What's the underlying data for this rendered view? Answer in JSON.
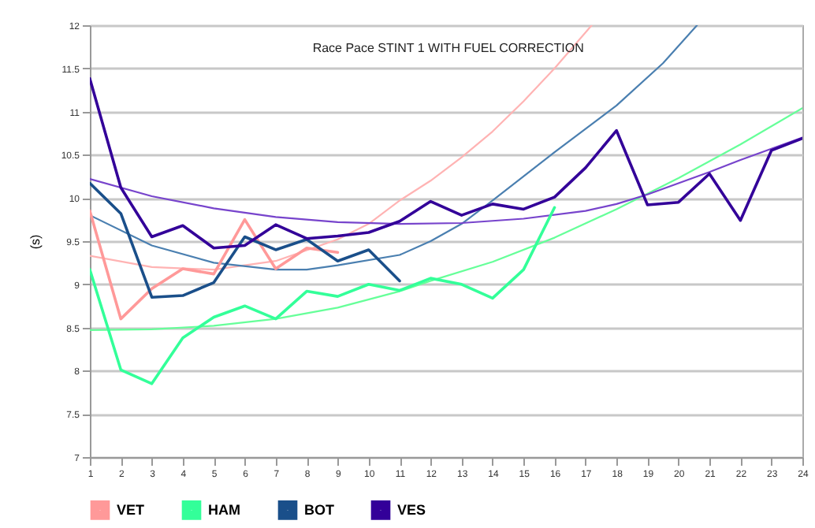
{
  "chart_data": {
    "type": "line",
    "title": "Race Pace STINT 1 WITH FUEL CORRECTION",
    "ylabel": "(s)",
    "xlim": [
      1,
      24
    ],
    "xticks": [
      1,
      2,
      3,
      4,
      5,
      6,
      7,
      8,
      9,
      10,
      11,
      12,
      13,
      14,
      15,
      16,
      17,
      18,
      19,
      20,
      21,
      22,
      23,
      24
    ],
    "ylim": [
      7,
      12
    ],
    "yticks": [
      7,
      7.5,
      8,
      8.5,
      9,
      9.5,
      10,
      10.5,
      11,
      11.5,
      12
    ],
    "grid": "y",
    "legend": "bottom",
    "marker": "none",
    "series": [
      {
        "color": "#ffb3b3",
        "x": [
          1,
          3,
          5,
          7,
          9,
          10,
          11,
          12,
          13,
          14,
          15,
          16,
          17.2
        ],
        "values": [
          9.33,
          9.2,
          9.17,
          9.27,
          9.52,
          9.7,
          9.97,
          10.2,
          10.47,
          10.77,
          11.12,
          11.5,
          12
        ]
      },
      {
        "color": "#4a7fb0",
        "x": [
          1,
          3,
          5,
          7,
          8,
          9,
          11,
          12,
          13,
          14,
          16,
          18,
          19.5,
          20.6
        ],
        "values": [
          9.8,
          9.45,
          9.25,
          9.17,
          9.17,
          9.22,
          9.34,
          9.5,
          9.7,
          9.97,
          10.53,
          11.07,
          11.56,
          12
        ]
      },
      {
        "color": "#66ff99",
        "x": [
          1,
          3,
          5,
          7,
          9,
          11,
          12,
          14,
          16,
          18,
          20,
          22,
          24
        ],
        "values": [
          8.47,
          8.48,
          8.52,
          8.6,
          8.73,
          8.92,
          9.04,
          9.26,
          9.54,
          9.87,
          10.23,
          10.62,
          11.04
        ]
      },
      {
        "color": "#7744cc",
        "x": [
          1,
          3,
          5,
          7,
          9,
          11,
          13,
          15,
          17,
          18,
          19,
          20,
          21,
          22,
          23,
          24
        ],
        "values": [
          10.22,
          10.02,
          9.88,
          9.78,
          9.72,
          9.7,
          9.71,
          9.76,
          9.85,
          9.93,
          10.04,
          10.17,
          10.3,
          10.44,
          10.57,
          10.7
        ]
      },
      {
        "name": "VET",
        "color": "#ff9999",
        "x": [
          1,
          2,
          3,
          4,
          5,
          6,
          7,
          8,
          9
        ],
        "values": [
          9.85,
          8.6,
          8.95,
          9.18,
          9.12,
          9.75,
          9.18,
          9.42,
          9.37
        ]
      },
      {
        "name": "HAM",
        "color": "#33ff99",
        "x": [
          1,
          2,
          3,
          4,
          5,
          6,
          7,
          8,
          9,
          10,
          11,
          12,
          13,
          14,
          15,
          16
        ],
        "values": [
          9.17,
          8.01,
          7.85,
          8.38,
          8.62,
          8.75,
          8.6,
          8.92,
          8.86,
          9.0,
          8.93,
          9.07,
          9.0,
          8.84,
          9.17,
          9.89
        ]
      },
      {
        "name": "BOT",
        "color": "#1a4f8a",
        "x": [
          1,
          2,
          3,
          4,
          5,
          6,
          7,
          8,
          9,
          10,
          11
        ],
        "values": [
          10.17,
          9.82,
          8.85,
          8.87,
          9.02,
          9.55,
          9.4,
          9.52,
          9.27,
          9.4,
          9.04
        ]
      },
      {
        "name": "VES",
        "color": "#330099",
        "x": [
          1,
          2,
          3,
          4,
          5,
          6,
          7,
          8,
          9,
          10,
          11,
          12,
          13,
          14,
          15,
          16,
          17,
          18,
          19,
          20,
          21,
          22,
          23,
          24
        ],
        "values": [
          11.38,
          10.12,
          9.55,
          9.68,
          9.42,
          9.45,
          9.69,
          9.53,
          9.56,
          9.6,
          9.73,
          9.96,
          9.8,
          9.93,
          9.87,
          10.01,
          10.35,
          10.78,
          9.92,
          9.95,
          10.28,
          9.74,
          10.55,
          10.69
        ]
      }
    ]
  }
}
